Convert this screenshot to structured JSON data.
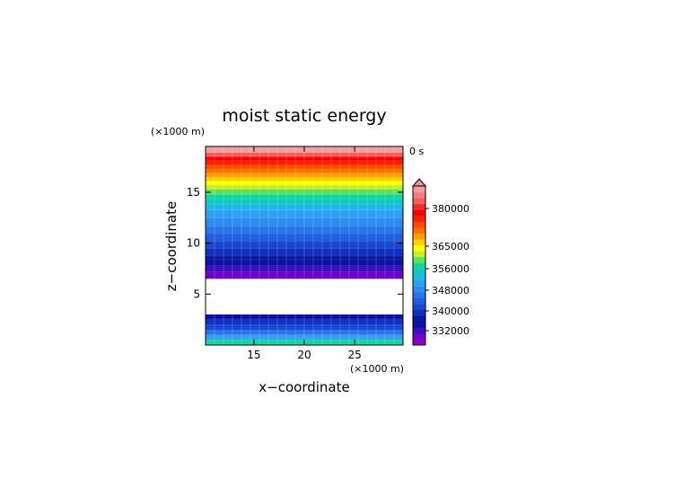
{
  "chart_data": {
    "type": "heatmap",
    "title": "moist static energy",
    "xlabel": "x−coordinate",
    "ylabel": "z−coordinate",
    "x_unit_label": "(×1000 m)",
    "y_unit_label": "(×1000 m)",
    "time_label": "0 s",
    "xlim": [
      10.2,
      29.8
    ],
    "ylim": [
      0,
      19.5
    ],
    "x_ticks": [
      15,
      20,
      25
    ],
    "y_ticks": [
      5,
      10,
      15
    ],
    "missing_band_z": [
      3.0,
      6.5
    ],
    "colorbar_ticks": [
      "380000",
      "365000",
      "356000",
      "348000",
      "340000",
      "332000"
    ],
    "colorbar_colors": [
      "#8b00c8",
      "#7400cc",
      "#3a0fbf",
      "#1010a0",
      "#0a1aa0",
      "#1030c0",
      "#1848d0",
      "#2060e0",
      "#2874e8",
      "#2a8cf0",
      "#30a0f8",
      "#20b8e8",
      "#10c8c8",
      "#10d89c",
      "#60e060",
      "#c8f020",
      "#ffff00",
      "#ffd000",
      "#ffa000",
      "#ff7000",
      "#ff4800",
      "#ff2000",
      "#ff0000",
      "#f03030",
      "#f06060",
      "#f08080",
      "#f0a0a0"
    ],
    "z_bands": [
      {
        "z0": 0.0,
        "z1": 0.5,
        "color": "#10d89c"
      },
      {
        "z0": 0.5,
        "z1": 1.0,
        "color": "#30a0f8"
      },
      {
        "z0": 1.0,
        "z1": 1.5,
        "color": "#2874e8"
      },
      {
        "z0": 1.5,
        "z1": 2.0,
        "color": "#1848d0"
      },
      {
        "z0": 2.0,
        "z1": 2.5,
        "color": "#1030c0"
      },
      {
        "z0": 2.5,
        "z1": 3.0,
        "color": "#1010a0"
      },
      {
        "z0": 6.5,
        "z1": 7.2,
        "color": "#7400cc"
      },
      {
        "z0": 7.2,
        "z1": 7.8,
        "color": "#3a0fbf"
      },
      {
        "z0": 7.8,
        "z1": 8.3,
        "color": "#1010a0"
      },
      {
        "z0": 8.3,
        "z1": 8.8,
        "color": "#0a1aa0"
      },
      {
        "z0": 8.8,
        "z1": 9.5,
        "color": "#1030c0"
      },
      {
        "z0": 9.5,
        "z1": 10.2,
        "color": "#1848d0"
      },
      {
        "z0": 10.2,
        "z1": 10.9,
        "color": "#2060e0"
      },
      {
        "z0": 10.9,
        "z1": 11.6,
        "color": "#2874e8"
      },
      {
        "z0": 11.6,
        "z1": 12.5,
        "color": "#2a8cf0"
      },
      {
        "z0": 12.5,
        "z1": 13.3,
        "color": "#30a0f8"
      },
      {
        "z0": 13.3,
        "z1": 13.8,
        "color": "#20b8e8"
      },
      {
        "z0": 13.8,
        "z1": 14.3,
        "color": "#10c8c8"
      },
      {
        "z0": 14.3,
        "z1": 14.8,
        "color": "#10d89c"
      },
      {
        "z0": 14.8,
        "z1": 15.3,
        "color": "#60e060"
      },
      {
        "z0": 15.3,
        "z1": 15.7,
        "color": "#c8f020"
      },
      {
        "z0": 15.7,
        "z1": 16.1,
        "color": "#ffff00"
      },
      {
        "z0": 16.1,
        "z1": 16.5,
        "color": "#ffd000"
      },
      {
        "z0": 16.5,
        "z1": 16.9,
        "color": "#ffa000"
      },
      {
        "z0": 16.9,
        "z1": 17.3,
        "color": "#ff7000"
      },
      {
        "z0": 17.3,
        "z1": 17.7,
        "color": "#ff4800"
      },
      {
        "z0": 17.7,
        "z1": 18.1,
        "color": "#ff2000"
      },
      {
        "z0": 18.1,
        "z1": 18.5,
        "color": "#ff0000"
      },
      {
        "z0": 18.5,
        "z1": 18.9,
        "color": "#f06060"
      },
      {
        "z0": 18.9,
        "z1": 19.5,
        "color": "#f0a0a0"
      }
    ]
  }
}
